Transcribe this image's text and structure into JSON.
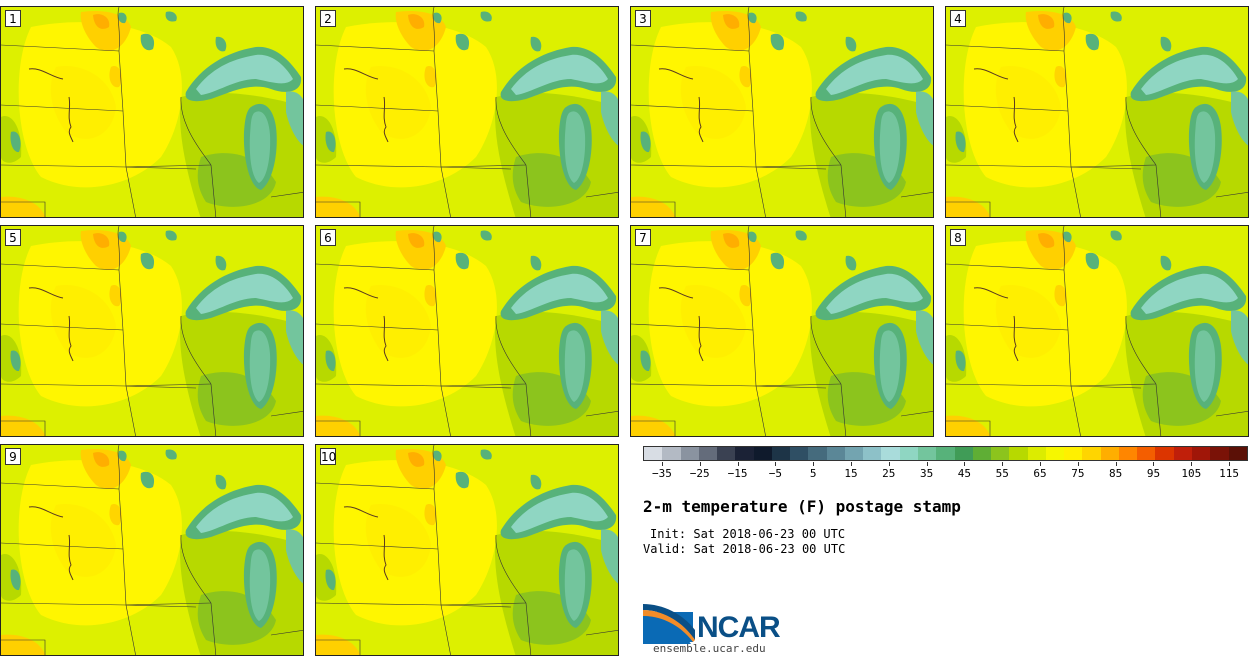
{
  "panels": [
    {
      "label": "1"
    },
    {
      "label": "2"
    },
    {
      "label": "3"
    },
    {
      "label": "4"
    },
    {
      "label": "5"
    },
    {
      "label": "6"
    },
    {
      "label": "7"
    },
    {
      "label": "8"
    },
    {
      "label": "9"
    },
    {
      "label": "10"
    }
  ],
  "colorbar": {
    "colors": [
      "#d8dde4",
      "#b3bac4",
      "#8a93a0",
      "#646c7b",
      "#3a4152",
      "#1b2236",
      "#0f1a2c",
      "#1d3447",
      "#2f4f64",
      "#456b7d",
      "#5b8797",
      "#73a4b0",
      "#8dc1c8",
      "#a9dcdb",
      "#8fd6c2",
      "#73c59d",
      "#57b27a",
      "#409c57",
      "#5fae35",
      "#8cc41d",
      "#b7d900",
      "#dcec00",
      "#f6f700",
      "#fff000",
      "#ffd500",
      "#ffae00",
      "#ff8600",
      "#f45e00",
      "#dc3500",
      "#c01f0a",
      "#a01608",
      "#7a1207",
      "#5b1006"
    ],
    "tick_values": [
      "−35",
      "−25",
      "−15",
      "−5",
      "5",
      "15",
      "25",
      "35",
      "45",
      "55",
      "65",
      "75",
      "85",
      "95",
      "105",
      "115"
    ],
    "range": [
      -40,
      120
    ]
  },
  "title": "2-m temperature (F) postage stamp",
  "init": "Init: Sat 2018-06-23 00 UTC",
  "valid": "Valid: Sat 2018-06-23 00 UTC",
  "logo": {
    "name": "NCAR",
    "site": "ensemble.ucar.edu"
  }
}
